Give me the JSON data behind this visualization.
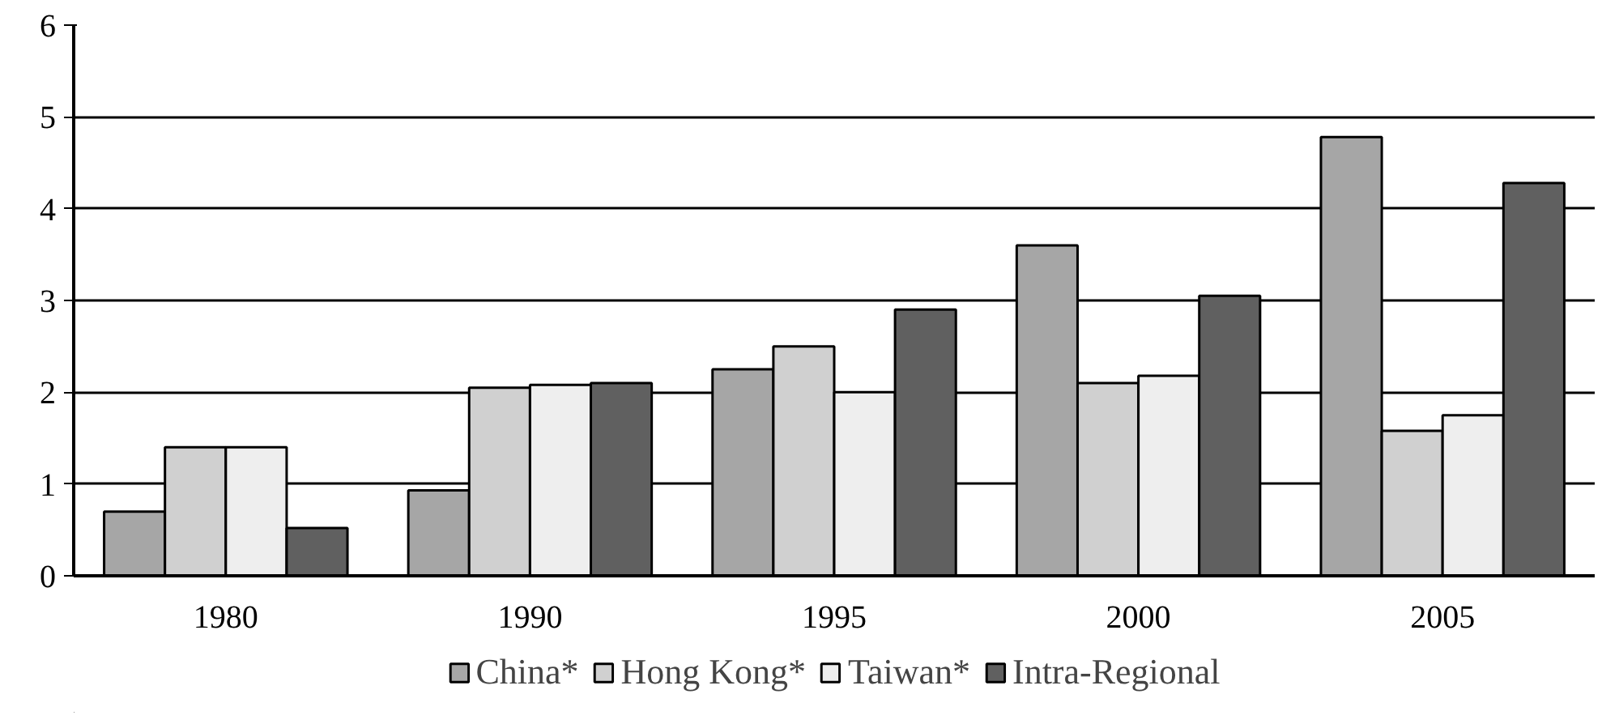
{
  "chart_data": {
    "type": "bar",
    "categories": [
      "1980",
      "1990",
      "1995",
      "2000",
      "2005"
    ],
    "series": [
      {
        "name": "China*",
        "color": "#a6a6a6",
        "values": [
          0.7,
          0.93,
          2.25,
          3.6,
          4.78
        ]
      },
      {
        "name": "Hong Kong*",
        "color": "#d0d0d0",
        "values": [
          1.4,
          2.05,
          2.5,
          2.1,
          1.58
        ]
      },
      {
        "name": "Taiwan*",
        "color": "#eeeeee",
        "values": [
          1.4,
          2.08,
          2.0,
          2.18,
          1.75
        ]
      },
      {
        "name": "Intra-Regional",
        "color": "#606060",
        "values": [
          0.52,
          2.1,
          2.9,
          3.05,
          4.28
        ]
      }
    ],
    "ylim": [
      0,
      6
    ],
    "yticks": [
      0,
      1,
      2,
      3,
      4,
      5,
      6
    ],
    "grid": "y",
    "legend": "bottom"
  }
}
